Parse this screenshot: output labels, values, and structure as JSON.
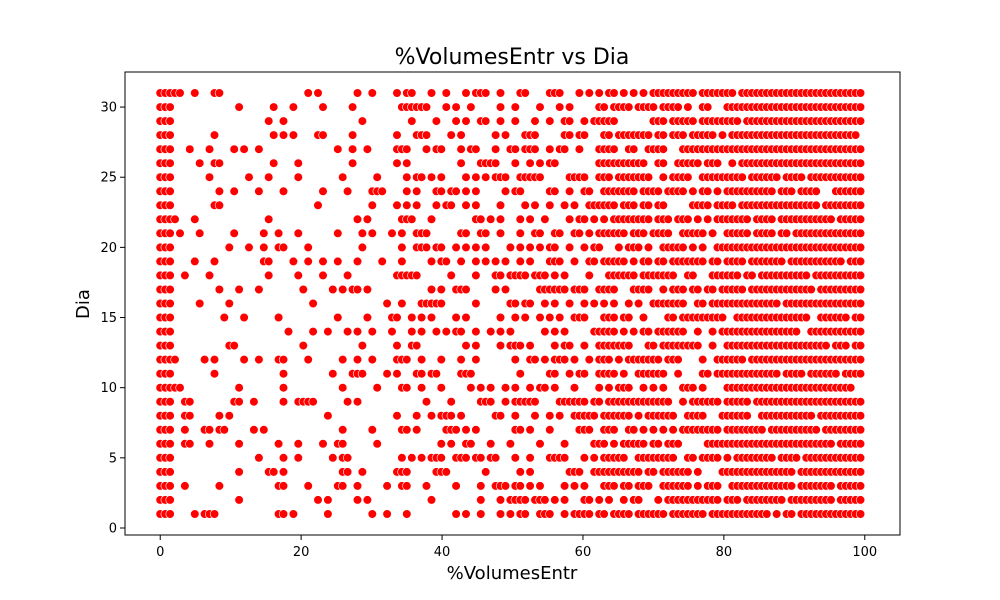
{
  "chart_data": {
    "type": "scatter",
    "title": "%VolumesEntr vs Dia",
    "xlabel": "%VolumesEntr",
    "ylabel": "Dia",
    "xlim": [
      -5,
      105
    ],
    "ylim": [
      -0.5,
      32.5
    ],
    "xticks": [
      0,
      20,
      40,
      60,
      80,
      100
    ],
    "yticks": [
      0,
      5,
      10,
      15,
      20,
      25,
      30
    ],
    "grid": false,
    "marker_color": "#ff0000",
    "marker_edge_color": "#ffffff",
    "x_step": 0.7,
    "y_values": [
      1,
      2,
      3,
      4,
      5,
      6,
      7,
      8,
      9,
      10,
      11,
      12,
      13,
      14,
      15,
      16,
      17,
      18,
      19,
      20,
      21,
      22,
      23,
      24,
      25,
      26,
      27,
      28,
      29,
      30,
      31
    ],
    "density": [
      {
        "from": 0,
        "to": 1.5,
        "p": 1.0
      },
      {
        "from": 1.5,
        "to": 20,
        "p": 0.14
      },
      {
        "from": 20,
        "to": 33,
        "p": 0.17
      },
      {
        "from": 33,
        "to": 50,
        "p": 0.34
      },
      {
        "from": 50,
        "to": 62,
        "p": 0.48
      },
      {
        "from": 62,
        "to": 80,
        "p": 0.68
      },
      {
        "from": 80,
        "to": 100.01,
        "p": 0.92
      }
    ]
  }
}
